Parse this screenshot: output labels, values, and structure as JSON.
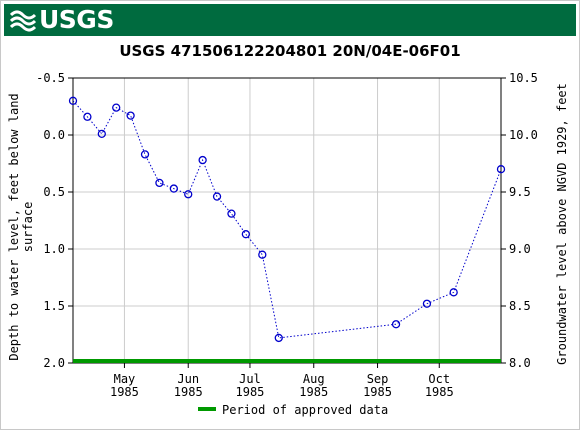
{
  "header": {
    "logo_text": "USGS"
  },
  "chart_data": {
    "type": "scatter",
    "title": "USGS 471506122204801 20N/04E-06F01",
    "ylabel_left": "Depth to water level, feet below land surface",
    "ylabel_left_lines": [
      "Depth to water level, feet below land",
      "surface"
    ],
    "ylabel_right": "Groundwater level above NGVD 1929, feet",
    "y_left_ticks": [
      "-0.5",
      "0.0",
      "0.5",
      "1.0",
      "1.5",
      "2.0"
    ],
    "y_right_ticks": [
      "10.5",
      "10.0",
      "9.5",
      "9.0",
      "8.5",
      "8.0"
    ],
    "ylim_left": [
      -0.5,
      2.0
    ],
    "ylim_right": [
      10.5,
      8.0
    ],
    "inverted_left_axis": true,
    "xlim": [
      "1985-04-06",
      "1985-10-31"
    ],
    "x_ticks": [
      {
        "month": "May",
        "year": "1985",
        "date": "1985-05-01"
      },
      {
        "month": "Jun",
        "year": "1985",
        "date": "1985-06-01"
      },
      {
        "month": "Jul",
        "year": "1985",
        "date": "1985-07-01"
      },
      {
        "month": "Aug",
        "year": "1985",
        "date": "1985-08-01"
      },
      {
        "month": "Sep",
        "year": "1985",
        "date": "1985-09-01"
      },
      {
        "month": "Oct",
        "year": "1985",
        "date": "1985-10-01"
      }
    ],
    "grid": true,
    "series": [
      {
        "marker": "circle-open",
        "line": "dotted",
        "color": "#0000cc",
        "points": [
          {
            "date": "1985-04-06",
            "depth": -0.3
          },
          {
            "date": "1985-04-13",
            "depth": -0.16
          },
          {
            "date": "1985-04-20",
            "depth": -0.01
          },
          {
            "date": "1985-04-27",
            "depth": -0.24
          },
          {
            "date": "1985-05-04",
            "depth": -0.17
          },
          {
            "date": "1985-05-11",
            "depth": 0.17
          },
          {
            "date": "1985-05-18",
            "depth": 0.42
          },
          {
            "date": "1985-05-25",
            "depth": 0.47
          },
          {
            "date": "1985-06-01",
            "depth": 0.52
          },
          {
            "date": "1985-06-08",
            "depth": 0.22
          },
          {
            "date": "1985-06-15",
            "depth": 0.54
          },
          {
            "date": "1985-06-22",
            "depth": 0.69
          },
          {
            "date": "1985-06-29",
            "depth": 0.87
          },
          {
            "date": "1985-07-07",
            "depth": 1.05
          },
          {
            "date": "1985-07-15",
            "depth": 1.78
          },
          {
            "date": "1985-09-10",
            "depth": 1.66
          },
          {
            "date": "1985-09-25",
            "depth": 1.48
          },
          {
            "date": "1985-10-08",
            "depth": 1.38
          },
          {
            "date": "1985-10-31",
            "depth": 0.3
          }
        ]
      }
    ],
    "approved_period": {
      "start": "1985-04-06",
      "end": "1985-10-31",
      "color": "#009900"
    },
    "legend": {
      "label": "Period of approved data",
      "placement": "bottom-center"
    }
  }
}
